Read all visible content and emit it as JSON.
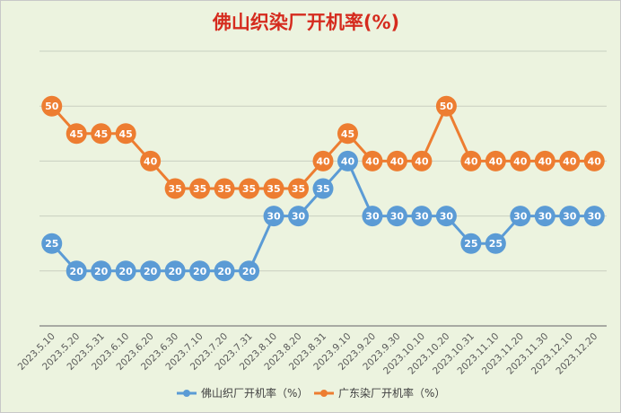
{
  "chart_data": {
    "type": "line",
    "title": "佛山织染厂开机率(%)",
    "categories": [
      "2023.5.10",
      "2023.5.20",
      "2023.5.31",
      "2023.6.10",
      "2023.6.20",
      "2023.6.30",
      "2023.7.10",
      "2023.7.20",
      "2023.7.31",
      "2023.8.10",
      "2023.8.20",
      "2023.8.31",
      "2023.9.10",
      "2023.9.20",
      "2023.9.30",
      "2023.10.10",
      "2023.10.20",
      "2023.10.31",
      "2023.11.10",
      "2023.11.20",
      "2023.11.30",
      "2023.12.10",
      "2023.12.20"
    ],
    "series": [
      {
        "name": "佛山织厂开机率（%）",
        "color": "#5b9bd5",
        "values": [
          25,
          20,
          20,
          20,
          20,
          20,
          20,
          20,
          20,
          30,
          30,
          35,
          40,
          30,
          30,
          30,
          30,
          25,
          25,
          30,
          30,
          30,
          30
        ]
      },
      {
        "name": "广东染厂开机率（%）",
        "color": "#ed7d31",
        "values": [
          50,
          45,
          45,
          45,
          40,
          35,
          35,
          35,
          35,
          35,
          35,
          40,
          45,
          40,
          40,
          40,
          50,
          40,
          40,
          40,
          40,
          40,
          40
        ]
      }
    ],
    "ylim": [
      10,
      60
    ],
    "grid": true,
    "legend": "bottom",
    "data_labels": true
  }
}
